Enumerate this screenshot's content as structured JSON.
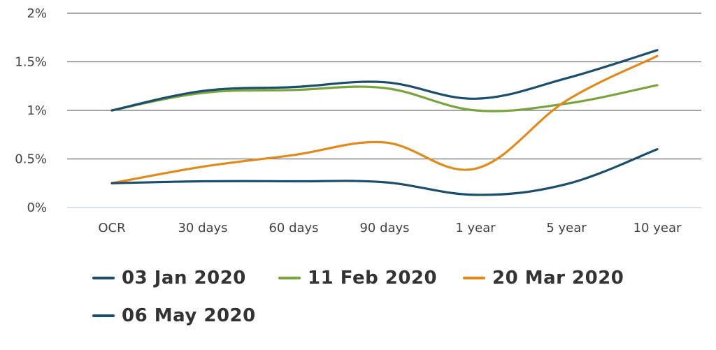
{
  "chart_data": {
    "type": "line",
    "title": "",
    "xlabel": "",
    "ylabel": "",
    "categories": [
      "OCR",
      "30 days",
      "60 days",
      "90 days",
      "1 year",
      "5 year",
      "10 year"
    ],
    "y_ticks": [
      "0%",
      "0.5%",
      "1%",
      "1.5%",
      "2%"
    ],
    "ylim": [
      0,
      2
    ],
    "grid": true,
    "legend_position": "bottom",
    "series": [
      {
        "name": "03 Jan 2020",
        "color": "#1a4e6b",
        "values": [
          1.0,
          1.2,
          1.24,
          1.29,
          1.12,
          1.33,
          1.62
        ]
      },
      {
        "name": "11 Feb 2020",
        "color": "#79a33c",
        "values": [
          1.0,
          1.18,
          1.21,
          1.23,
          1.0,
          1.07,
          1.26
        ]
      },
      {
        "name": "20 Mar 2020",
        "color": "#e08a1e",
        "values": [
          0.25,
          0.42,
          0.54,
          0.67,
          0.4,
          1.1,
          1.56
        ]
      },
      {
        "name": "06 May 2020",
        "color": "#1a4e6b",
        "values": [
          0.25,
          0.27,
          0.27,
          0.26,
          0.13,
          0.24,
          0.6
        ]
      }
    ]
  }
}
